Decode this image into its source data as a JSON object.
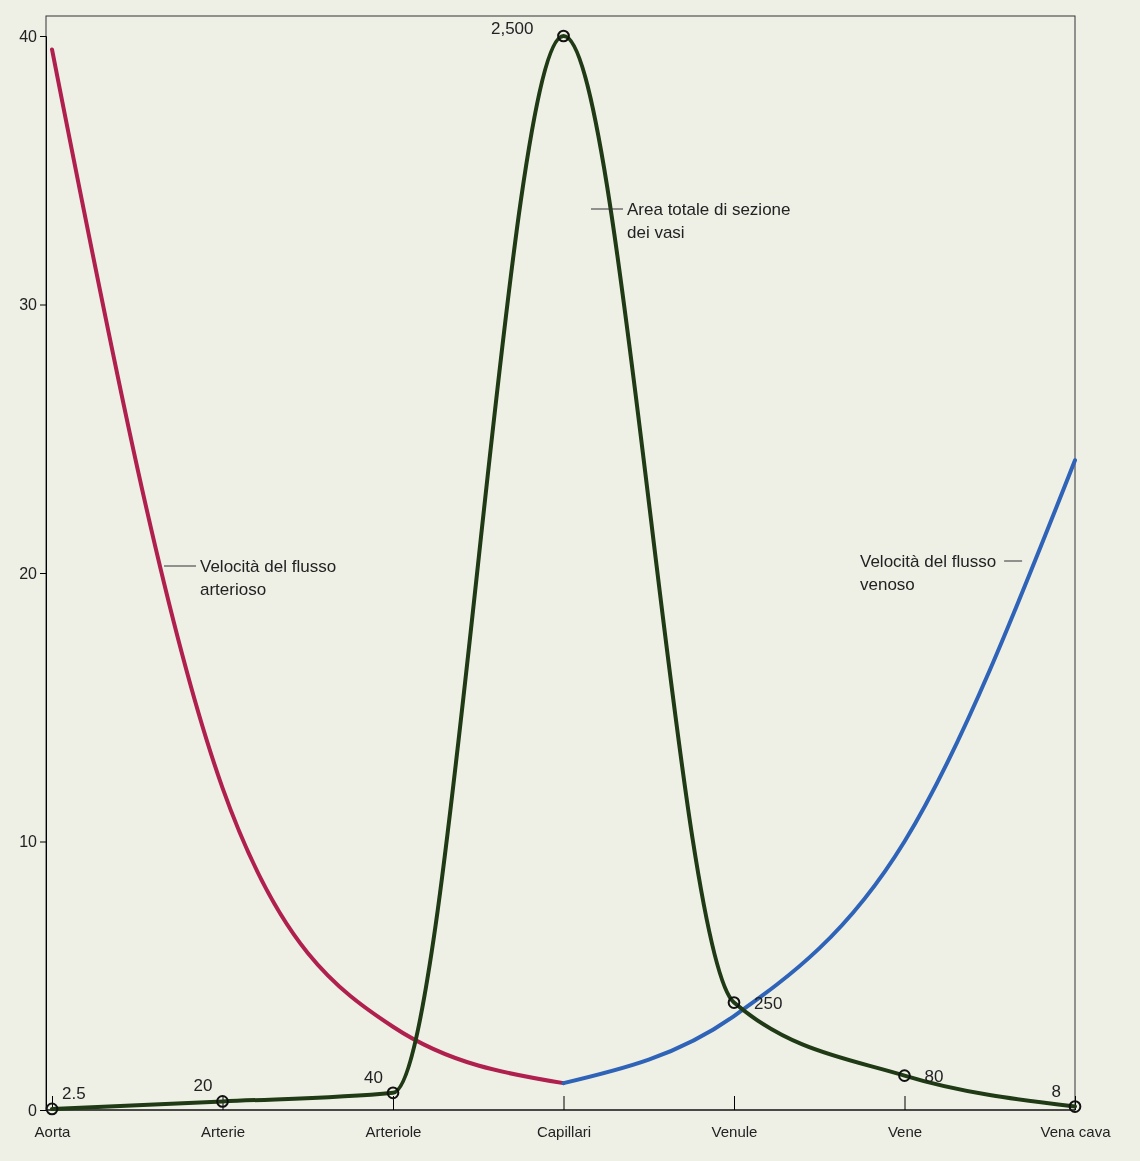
{
  "chart_data": {
    "type": "line",
    "categories": [
      "Aorta",
      "Arterie",
      "Arteriole",
      "Capillari",
      "Venule",
      "Vene",
      "Vena cava"
    ],
    "ylim": [
      0,
      40
    ],
    "yticks": [
      0,
      10,
      20,
      30,
      40
    ],
    "y2lim": [
      0,
      2500
    ],
    "grid": false,
    "legend": false,
    "line_style": "solid",
    "series": [
      {
        "name": "Velocità del flusso arterioso",
        "color": "#b0204f",
        "values": [
          39.5,
          12,
          3.1,
          1.0,
          null,
          null,
          null
        ],
        "marker": "none"
      },
      {
        "name": "Velocità del flusso venoso",
        "color": "#2f63b8",
        "values": [
          null,
          null,
          null,
          1.0,
          3.5,
          10,
          24.2
        ],
        "marker": "none"
      },
      {
        "name": "Area totale di sezione dei vasi",
        "color": "#1f3a14",
        "axis": "y2",
        "values": [
          2.5,
          20,
          40,
          2500,
          250,
          80,
          8
        ],
        "marker": "circle",
        "value_labels": [
          "2.5",
          "20",
          "40",
          "2,500",
          "250",
          "80",
          "8"
        ]
      }
    ]
  }
}
